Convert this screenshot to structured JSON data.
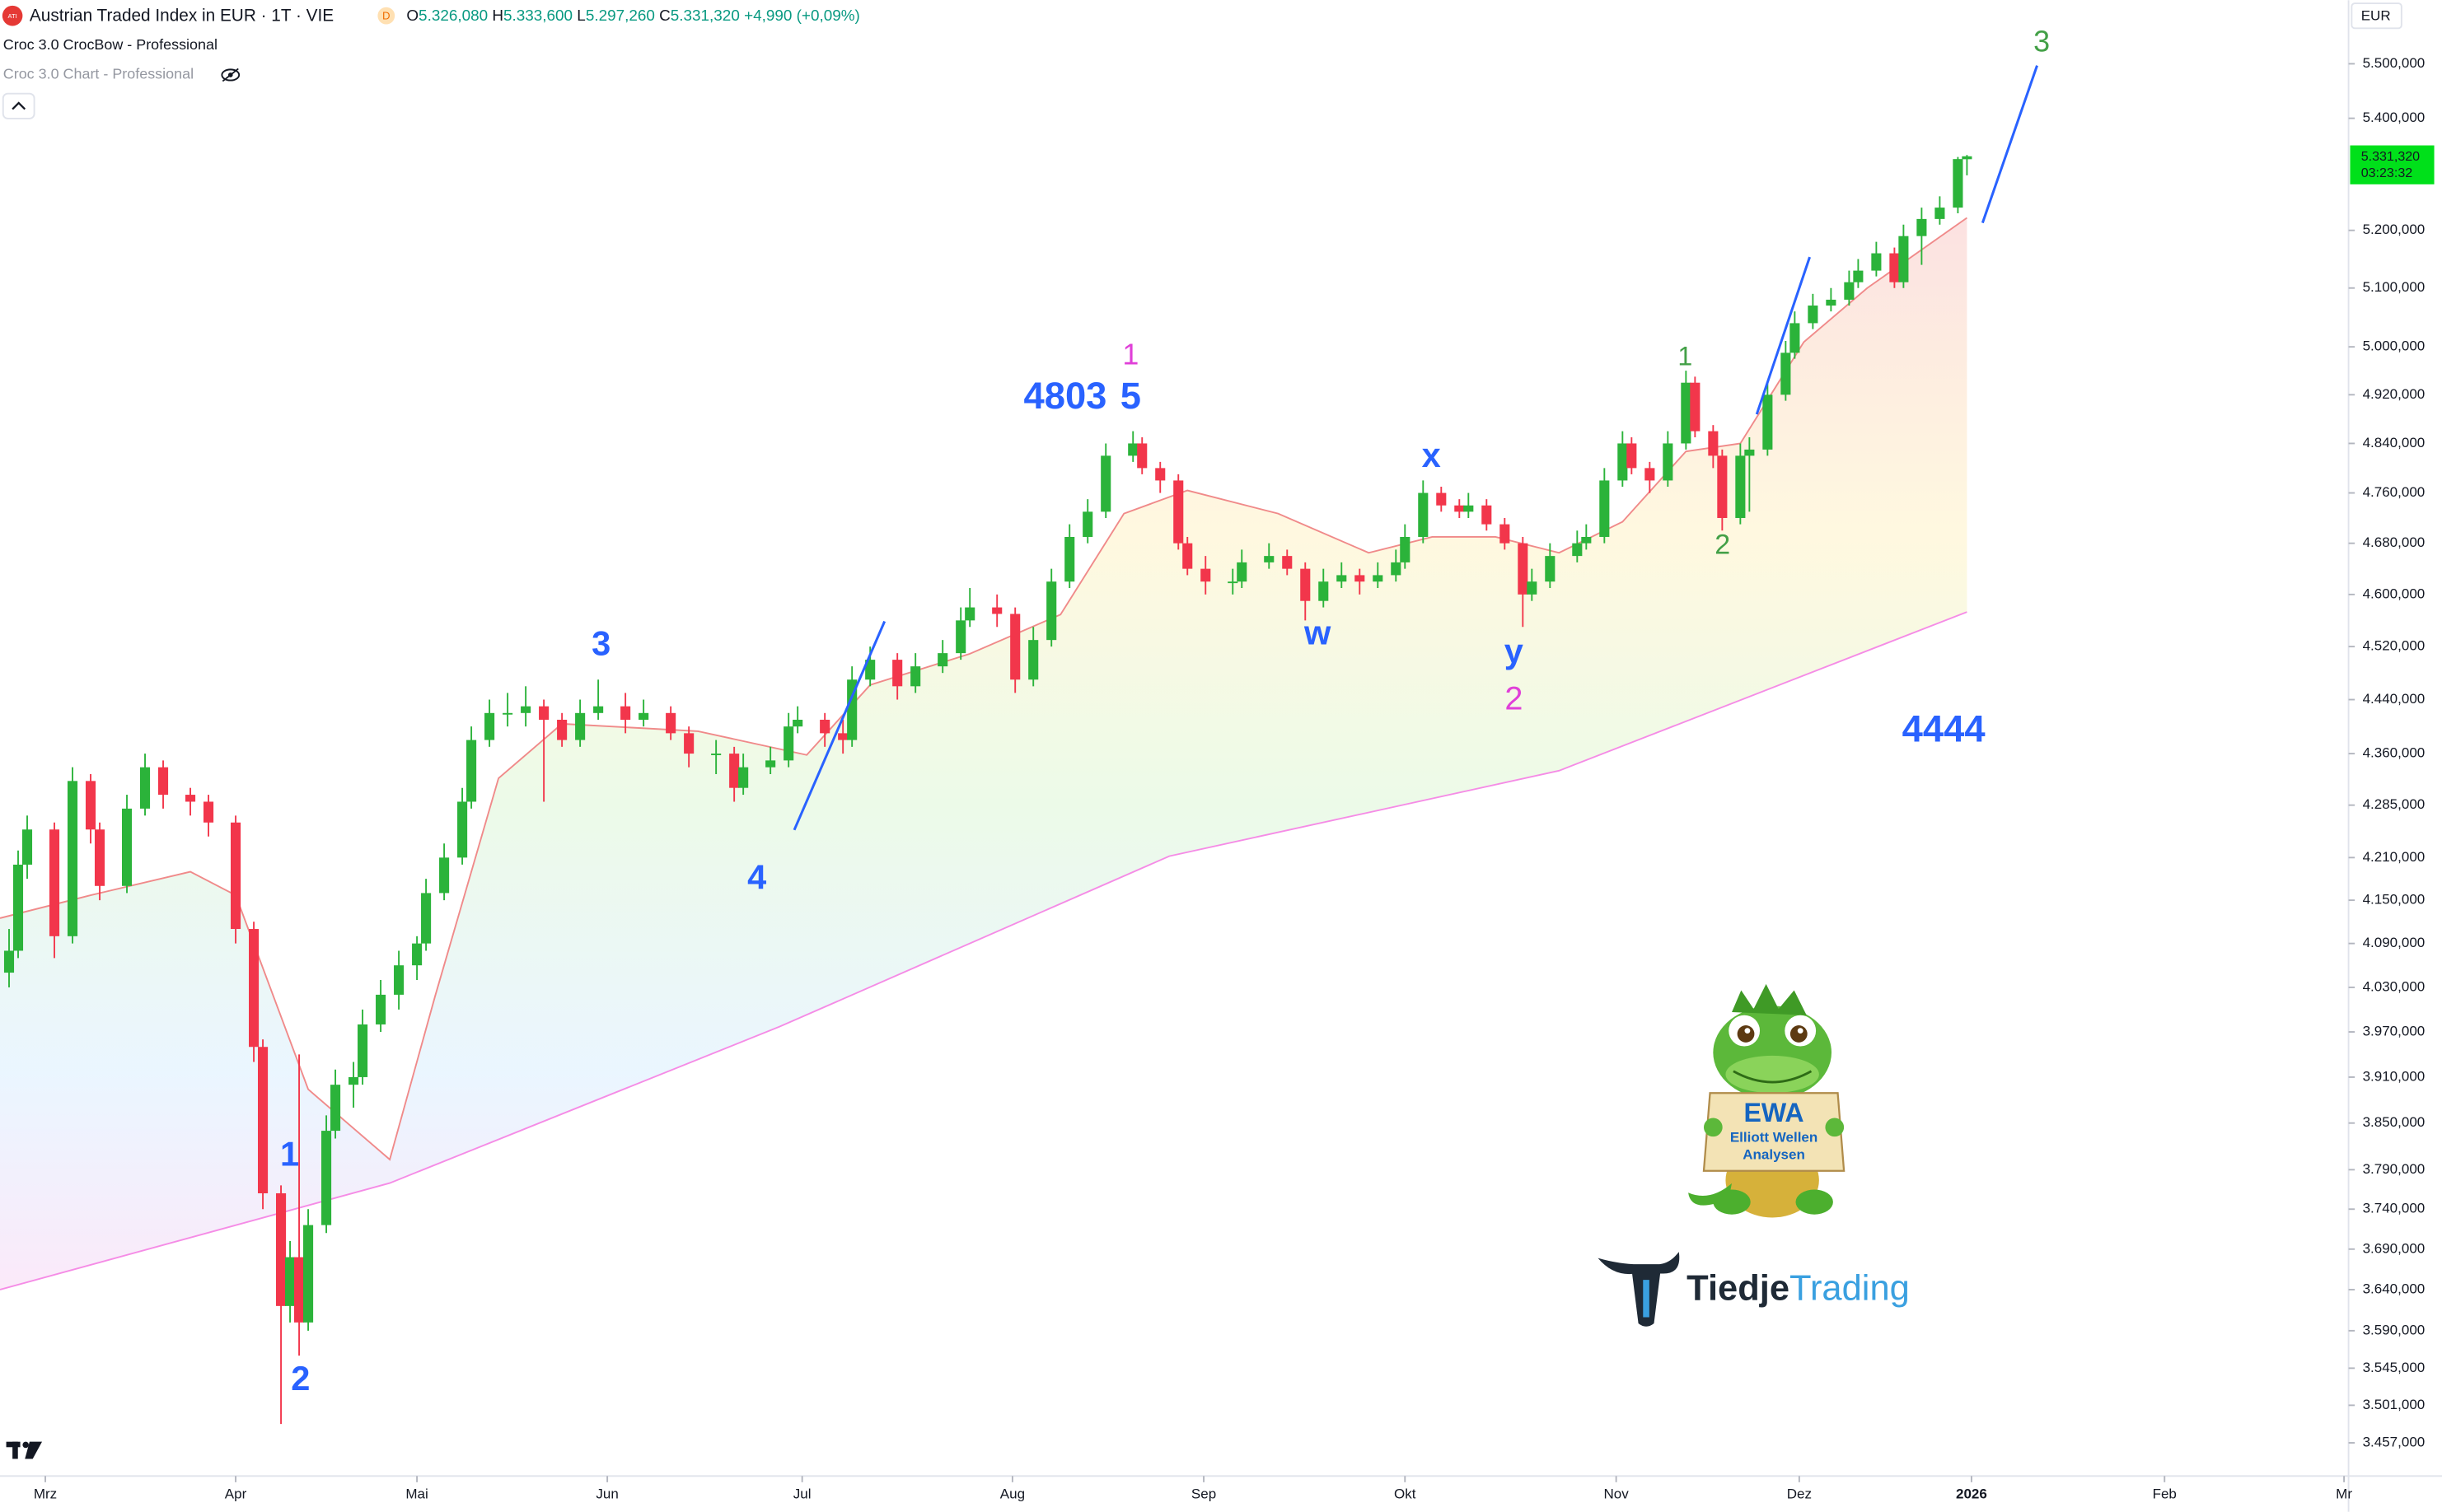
{
  "header": {
    "badge": "ATI",
    "title": "Austrian Traded Index in EUR · 1T · VIE",
    "source": "D",
    "ohlc": [
      {
        "key": "O",
        "text": "5.326,080"
      },
      {
        "key": "H",
        "text": "5.333,600"
      },
      {
        "key": "L",
        "text": "5.297,260"
      },
      {
        "key": "C",
        "text": "5.331,320"
      }
    ],
    "change": "+4,990 (+0,09%)",
    "indicators": [
      "Croc 3.0 CrocBow - Professional",
      "Croc 3.0 Chart - Professional"
    ]
  },
  "currency": "EUR",
  "chart_data": {
    "type": "candlestick",
    "x": [
      1,
      2,
      3,
      6,
      8,
      10,
      11,
      14,
      16,
      18,
      21,
      23,
      26,
      28,
      29,
      31,
      32,
      33,
      34,
      36,
      37,
      39,
      40,
      42,
      44,
      46,
      47,
      49,
      51,
      52,
      54,
      56,
      58,
      60,
      62,
      64,
      66,
      69,
      71,
      74,
      76,
      79,
      81,
      82,
      85,
      87,
      88,
      91,
      93,
      94,
      96,
      99,
      101,
      104,
      106,
      107,
      110,
      112,
      114,
      116,
      118,
      120,
      122,
      125,
      126,
      128,
      130,
      131,
      133,
      136,
      137,
      140,
      142,
      144,
      146,
      148,
      150,
      152,
      154,
      155,
      157,
      159,
      161,
      162,
      164,
      166,
      168,
      169,
      171,
      174,
      175,
      177,
      179,
      180,
      182,
      184,
      186,
      187,
      189,
      190,
      192,
      193,
      195,
      197,
      198,
      200,
      202,
      204,
      205,
      207,
      209,
      210,
      212,
      214,
      216,
      217
    ],
    "open": [
      4050,
      4080,
      4200,
      4250,
      4100,
      4320,
      4250,
      4170,
      4280,
      4340,
      4300,
      4290,
      4260,
      4110,
      3950,
      3760,
      3620,
      3680,
      3600,
      3720,
      3840,
      3900,
      3910,
      3980,
      4020,
      4060,
      4090,
      4160,
      4210,
      4290,
      4380,
      4420,
      4420,
      4430,
      4410,
      4380,
      4420,
      4430,
      4410,
      4420,
      4390,
      4360,
      4360,
      4310,
      4340,
      4350,
      4400,
      4410,
      4390,
      4380,
      4470,
      4500,
      4460,
      4490,
      4510,
      4560,
      4580,
      4570,
      4470,
      4530,
      4620,
      4690,
      4730,
      4820,
      4840,
      4800,
      4780,
      4680,
      4640,
      4620,
      4620,
      4650,
      4660,
      4640,
      4590,
      4620,
      4630,
      4620,
      4630,
      4650,
      4690,
      4760,
      4740,
      4730,
      4740,
      4710,
      4680,
      4600,
      4620,
      4660,
      4680,
      4690,
      4780,
      4840,
      4800,
      4780,
      4840,
      4940,
      4860,
      4820,
      4720,
      4820,
      4830,
      4920,
      4990,
      5040,
      5070,
      5080,
      5110,
      5130,
      5160,
      5110,
      5190,
      5220,
      5240,
      5326.08
    ],
    "high": [
      4110,
      4220,
      4270,
      4260,
      4340,
      4330,
      4260,
      4300,
      4360,
      4350,
      4310,
      4300,
      4270,
      4120,
      3960,
      3770,
      3700,
      3940,
      3740,
      3860,
      3920,
      3930,
      4000,
      4040,
      4080,
      4100,
      4180,
      4230,
      4310,
      4400,
      4440,
      4450,
      4460,
      4440,
      4420,
      4440,
      4470,
      4450,
      4440,
      4430,
      4400,
      4380,
      4370,
      4360,
      4370,
      4420,
      4430,
      4420,
      4410,
      4490,
      4520,
      4510,
      4510,
      4530,
      4580,
      4610,
      4600,
      4580,
      4550,
      4640,
      4710,
      4750,
      4840,
      4860,
      4850,
      4810,
      4790,
      4690,
      4660,
      4640,
      4670,
      4680,
      4670,
      4650,
      4640,
      4650,
      4640,
      4650,
      4670,
      4710,
      4780,
      4770,
      4750,
      4760,
      4750,
      4720,
      4690,
      4640,
      4680,
      4700,
      4710,
      4800,
      4860,
      4850,
      4810,
      4860,
      4960,
      4950,
      4870,
      4830,
      4840,
      4850,
      4940,
      5010,
      5060,
      5090,
      5100,
      5130,
      5150,
      5180,
      5170,
      5210,
      5240,
      5260,
      5330,
      5333.6
    ],
    "low": [
      4030,
      4070,
      4180,
      4070,
      4090,
      4230,
      4150,
      4160,
      4270,
      4280,
      4270,
      4240,
      4090,
      3930,
      3740,
      3479,
      3600,
      3560,
      3590,
      3710,
      3830,
      3870,
      3900,
      3970,
      4000,
      4040,
      4080,
      4150,
      4200,
      4280,
      4370,
      4400,
      4400,
      4290,
      4370,
      4370,
      4410,
      4390,
      4400,
      4380,
      4340,
      4330,
      4290,
      4300,
      4330,
      4340,
      4390,
      4370,
      4360,
      4370,
      4460,
      4440,
      4450,
      4480,
      4500,
      4550,
      4550,
      4450,
      4460,
      4520,
      4610,
      4680,
      4720,
      4810,
      4790,
      4760,
      4670,
      4630,
      4600,
      4600,
      4610,
      4640,
      4630,
      4560,
      4580,
      4610,
      4600,
      4610,
      4620,
      4640,
      4680,
      4730,
      4720,
      4720,
      4700,
      4670,
      4550,
      4590,
      4610,
      4650,
      4670,
      4680,
      4770,
      4790,
      4760,
      4770,
      4830,
      4850,
      4800,
      4700,
      4710,
      4730,
      4820,
      4910,
      4980,
      5030,
      5060,
      5070,
      5100,
      5120,
      5100,
      5100,
      5140,
      5210,
      5230,
      5297.26
    ],
    "close": [
      4080,
      4200,
      4250,
      4100,
      4320,
      4250,
      4170,
      4280,
      4340,
      4300,
      4290,
      4260,
      4110,
      3950,
      3760,
      3620,
      3680,
      3600,
      3720,
      3840,
      3900,
      3910,
      3980,
      4020,
      4060,
      4090,
      4160,
      4210,
      4290,
      4380,
      4420,
      4420,
      4430,
      4410,
      4380,
      4420,
      4430,
      4410,
      4420,
      4390,
      4360,
      4360,
      4310,
      4340,
      4350,
      4400,
      4410,
      4390,
      4380,
      4470,
      4500,
      4460,
      4490,
      4510,
      4560,
      4580,
      4570,
      4470,
      4530,
      4620,
      4690,
      4730,
      4820,
      4840,
      4800,
      4780,
      4680,
      4640,
      4620,
      4620,
      4650,
      4660,
      4640,
      4590,
      4620,
      4630,
      4620,
      4630,
      4650,
      4690,
      4760,
      4740,
      4730,
      4740,
      4710,
      4680,
      4600,
      4620,
      4660,
      4680,
      4690,
      4780,
      4840,
      4800,
      4780,
      4840,
      4940,
      4860,
      4820,
      4720,
      4820,
      4830,
      4920,
      4990,
      5040,
      5070,
      5080,
      5110,
      5130,
      5160,
      5110,
      5190,
      5220,
      5240,
      5326.33,
      5331.32
    ],
    "up_color": "#2bb33a",
    "down_color": "#f2364b",
    "xlim": [
      0,
      259.1
    ],
    "xticks": [
      {
        "value": 5,
        "label": "Mrz"
      },
      {
        "value": 26,
        "label": "Apr"
      },
      {
        "value": 46,
        "label": "Mai"
      },
      {
        "value": 67,
        "label": "Jun"
      },
      {
        "value": 88.5,
        "label": "Jul"
      },
      {
        "value": 111.7,
        "label": "Aug"
      },
      {
        "value": 132.8,
        "label": "Sep"
      },
      {
        "value": 155,
        "label": "Okt"
      },
      {
        "value": 178.3,
        "label": "Nov"
      },
      {
        "value": 198.5,
        "label": "Dez"
      },
      {
        "value": 217.5,
        "label": "2026"
      },
      {
        "value": 238.8,
        "label": "Feb"
      },
      {
        "value": 258.6,
        "label": "Mr"
      }
    ],
    "ylim": [
      3424,
      5619
    ],
    "log_scale": true,
    "grid": false,
    "yticks": [
      {
        "value": 5500,
        "label": "5.500,000"
      },
      {
        "value": 5400,
        "label": "5.400,000"
      },
      {
        "value": 5200,
        "label": "5.200,000"
      },
      {
        "value": 5100,
        "label": "5.100,000"
      },
      {
        "value": 5000,
        "label": "5.000,000"
      },
      {
        "value": 4920,
        "label": "4.920,000"
      },
      {
        "value": 4840,
        "label": "4.840,000"
      },
      {
        "value": 4760,
        "label": "4.760,000"
      },
      {
        "value": 4680,
        "label": "4.680,000"
      },
      {
        "value": 4600,
        "label": "4.600,000"
      },
      {
        "value": 4520,
        "label": "4.520,000"
      },
      {
        "value": 4440,
        "label": "4.440,000"
      },
      {
        "value": 4360,
        "label": "4.360,000"
      },
      {
        "value": 4285,
        "label": "4.285,000"
      },
      {
        "value": 4210,
        "label": "4.210,000"
      },
      {
        "value": 4150,
        "label": "4.150,000"
      },
      {
        "value": 4090,
        "label": "4.090,000"
      },
      {
        "value": 4030,
        "label": "4.030,000"
      },
      {
        "value": 3970,
        "label": "3.970,000"
      },
      {
        "value": 3910,
        "label": "3.910,000"
      },
      {
        "value": 3850,
        "label": "3.850,000"
      },
      {
        "value": 3790,
        "label": "3.790,000"
      },
      {
        "value": 3740,
        "label": "3.740,000"
      },
      {
        "value": 3690,
        "label": "3.690,000"
      },
      {
        "value": 3640,
        "label": "3.640,000"
      },
      {
        "value": 3590,
        "label": "3.590,000"
      },
      {
        "value": 3545,
        "label": "3.545,000"
      },
      {
        "value": 3501,
        "label": "3.501,000"
      },
      {
        "value": 3457,
        "label": "3.457,000"
      }
    ],
    "price_tag": {
      "value": 5331.32,
      "label": "5.331,320",
      "countdown": "03:23:32",
      "color": "#00e01a"
    },
    "bands": [
      {
        "color": "#f08a8a",
        "x": [
          0,
          10,
          21,
          26,
          34,
          43,
          48,
          55,
          62,
          77,
          89,
          96,
          107,
          117,
          124,
          131,
          141,
          151,
          158,
          165,
          172,
          179,
          186,
          192,
          199,
          206,
          217
        ],
        "values": [
          4125,
          4157,
          4190,
          4157,
          3894,
          3803,
          4018,
          4324,
          4404,
          4393,
          4358,
          4462,
          4509,
          4569,
          4727,
          4764,
          4727,
          4665,
          4690,
          4690,
          4665,
          4714,
          4827,
          4840,
          5008,
          5100,
          5222
        ]
      },
      {
        "color": "#f58ce6",
        "x": [
          0,
          43,
          86,
          129,
          172,
          217
        ],
        "values": [
          3640,
          3773,
          3977,
          4212,
          4335,
          4573
        ]
      }
    ],
    "annotations": [
      {
        "text": "1",
        "color": "#2962ff"
      },
      {
        "text": "2",
        "color": "#2962ff"
      },
      {
        "text": "3",
        "color": "#2962ff"
      },
      {
        "text": "4",
        "color": "#2962ff"
      },
      {
        "text": "4803",
        "color": "#2962ff"
      },
      {
        "text": "5",
        "color": "#2962ff"
      },
      {
        "text": "1",
        "color": "#e040d8"
      },
      {
        "text": "x",
        "color": "#2962ff"
      },
      {
        "text": "w",
        "color": "#2962ff"
      },
      {
        "text": "y",
        "color": "#2962ff"
      },
      {
        "text": "2",
        "color": "#e040d8"
      },
      {
        "text": "1",
        "color": "#43a047"
      },
      {
        "text": "2",
        "color": "#43a047"
      },
      {
        "text": "3",
        "color": "#43a047"
      },
      {
        "text": "4444",
        "color": "#2962ff"
      }
    ]
  },
  "logo": {
    "sign_title": "EWA",
    "sign_line1": "Elliott Wellen",
    "sign_line2": "Analysen",
    "brand_dark": "Tiedje",
    "brand_light": "Trading"
  }
}
